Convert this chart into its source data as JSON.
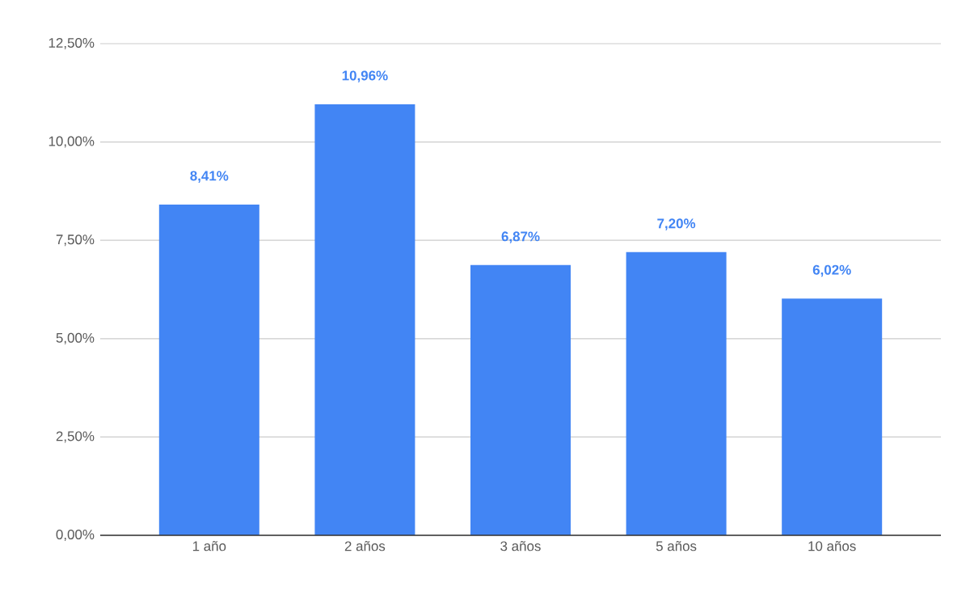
{
  "chart_data": {
    "type": "bar",
    "categories": [
      "1 año",
      "2 años",
      "3 años",
      "5 años",
      "10 años"
    ],
    "values": [
      8.41,
      10.96,
      6.87,
      7.2,
      6.02
    ],
    "value_labels": [
      "8,41%",
      "10,96%",
      "6,87%",
      "7,20%",
      "6,02%"
    ],
    "color": "#4285f4",
    "ylim": [
      0,
      12.5
    ],
    "yticks": [
      {
        "value": 0,
        "label": "0,00%"
      },
      {
        "value": 2.5,
        "label": "2,50%"
      },
      {
        "value": 5,
        "label": "5,00%"
      },
      {
        "value": 7.5,
        "label": "7,50%"
      },
      {
        "value": 10,
        "label": "10,00%"
      },
      {
        "value": 12.5,
        "label": "12,50%"
      }
    ],
    "grid": "y"
  }
}
